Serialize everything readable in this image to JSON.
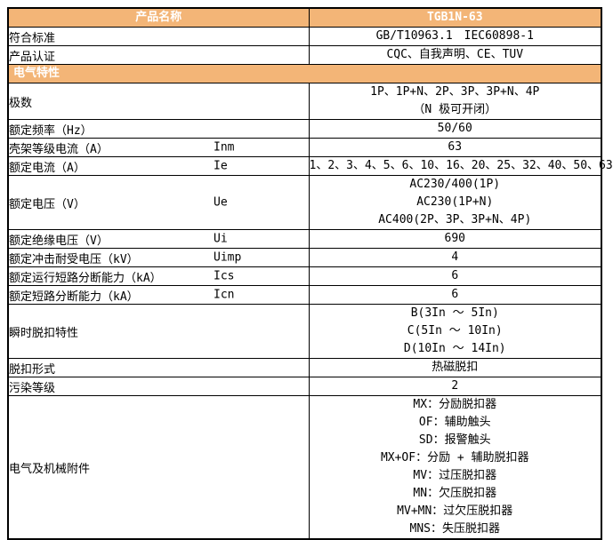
{
  "colors": {
    "header_bg": "#F3B577",
    "header_text": "#FFFFFF",
    "border": "#000000",
    "body_text": "#000000",
    "page_bg": "#FFFFFF"
  },
  "table": {
    "header": {
      "left": "产品名称",
      "right": "TGB1N-63"
    },
    "rows": [
      {
        "type": "kv",
        "label": "符合标准",
        "symbol": "",
        "values": [
          "GB/T10963.1　IEC60898-1"
        ]
      },
      {
        "type": "kv",
        "label": "产品认证",
        "symbol": "",
        "values": [
          "CQC、自我声明、CE、TUV"
        ]
      },
      {
        "type": "section",
        "label": "电气特性"
      },
      {
        "type": "kv",
        "label": "极数",
        "symbol": "",
        "values": [
          "1P、1P+N、2P、3P、3P+N、4P",
          "（N 极可开闭）"
        ]
      },
      {
        "type": "kv",
        "label": "额定频率（Hz）",
        "symbol": "",
        "values": [
          "50/60"
        ]
      },
      {
        "type": "kv",
        "label": "壳架等级电流（A）",
        "symbol": "Inm",
        "values": [
          "63"
        ]
      },
      {
        "type": "kv",
        "label": "额定电流（A）",
        "symbol": "Ie",
        "values": [
          "1、2、3、4、5、6、10、16、20、25、32、40、50、63"
        ]
      },
      {
        "type": "kv",
        "label": "额定电压（V）",
        "symbol": "Ue",
        "values": [
          "AC230/400(1P)",
          "AC230(1P+N)",
          "AC400(2P、3P、3P+N、4P)"
        ]
      },
      {
        "type": "kv",
        "label": "额定绝缘电压（V）",
        "symbol": "Ui",
        "values": [
          "690"
        ]
      },
      {
        "type": "kv",
        "label": "额定冲击耐受电压（kV）",
        "symbol": "Uimp",
        "values": [
          "4"
        ]
      },
      {
        "type": "kv",
        "label": "额定运行短路分断能力（kA）",
        "symbol": "Ics",
        "values": [
          "6"
        ]
      },
      {
        "type": "kv",
        "label": "额定短路分断能力（kA）",
        "symbol": "Icn",
        "values": [
          "6"
        ]
      },
      {
        "type": "kv",
        "label": "瞬时脱扣特性",
        "symbol": "",
        "values": [
          "B(3In ～ 5In)",
          "C(5In ～ 10In)",
          "D(10In ～ 14In)"
        ]
      },
      {
        "type": "kv",
        "label": "脱扣形式",
        "symbol": "",
        "values": [
          "热磁脱扣"
        ]
      },
      {
        "type": "kv",
        "label": "污染等级",
        "symbol": "",
        "values": [
          "2"
        ]
      },
      {
        "type": "kv",
        "label": "电气及机械附件",
        "symbol": "",
        "values": [
          "MX：分励脱扣器",
          "OF：辅助触头",
          "SD：报警触头",
          "MX+OF：分励 + 辅助脱扣器",
          "MV：过压脱扣器",
          "MN：欠压脱扣器",
          "MV+MN：过欠压脱扣器",
          "MNS：失压脱扣器"
        ]
      }
    ]
  }
}
